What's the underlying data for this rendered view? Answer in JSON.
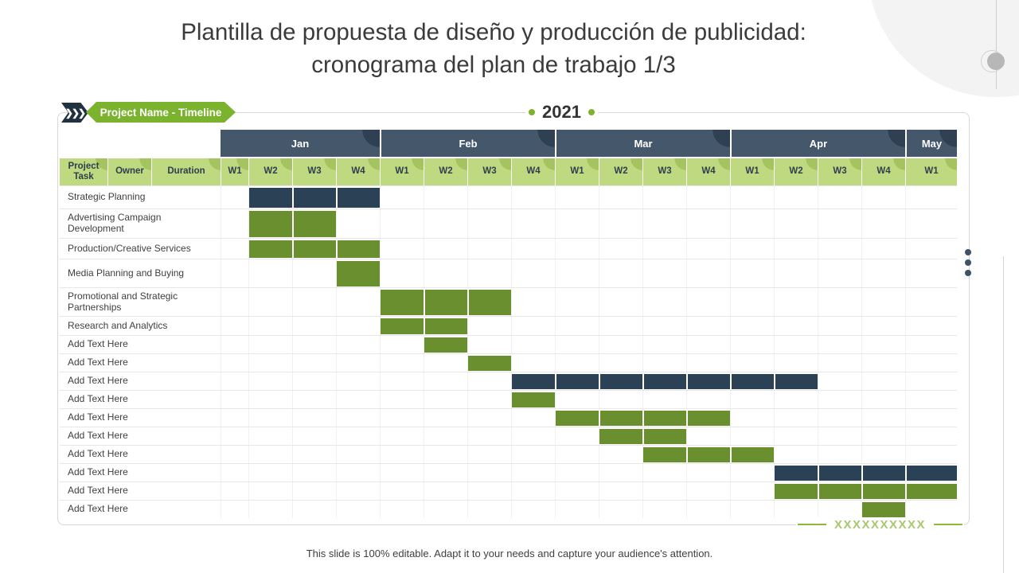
{
  "slide": {
    "title_line1": "Plantilla de propuesta de diseño y producción de publicidad:",
    "title_line2": "cronograma del plan de trabajo 1/3",
    "footer": "This slide is 100% editable. Adapt it to your needs and capture your audience's attention.",
    "signature_placeholder": "XXXXXXXXXX"
  },
  "banner": {
    "label": "Project Name - Timeline",
    "chevron_glyphs": "❯❯❯",
    "year": "2021"
  },
  "colors": {
    "bar_navy": "#2b4155",
    "bar_green": "#6a8f2e",
    "header_navy": "#45576b",
    "header_navy_dark": "#2e4052",
    "header_green": "#bed97f",
    "header_green_dark": "#a3c45f",
    "banner_green": "#7cb32e",
    "frame_line": "#d8d8d8"
  },
  "table": {
    "left_headers": [
      "Project Task",
      "Owner",
      "Duration"
    ],
    "months": [
      {
        "name": "Jan",
        "weeks": [
          "W1",
          "W2",
          "W3",
          "W4"
        ]
      },
      {
        "name": "Feb",
        "weeks": [
          "W1",
          "W2",
          "W3",
          "W4"
        ]
      },
      {
        "name": "Mar",
        "weeks": [
          "W1",
          "W2",
          "W3",
          "W4"
        ]
      },
      {
        "name": "Apr",
        "weeks": [
          "W1",
          "W2",
          "W3",
          "W4"
        ]
      },
      {
        "name": "May",
        "weeks": [
          "W1"
        ]
      }
    ]
  },
  "chart_data": {
    "type": "table",
    "title": "Project Name - Timeline",
    "year": "2021",
    "x_axis_weeks": [
      "Jan W1",
      "Jan W2",
      "Jan W3",
      "Jan W4",
      "Feb W1",
      "Feb W2",
      "Feb W3",
      "Feb W4",
      "Mar W1",
      "Mar W2",
      "Mar W3",
      "Mar W4",
      "Apr W1",
      "Apr W2",
      "Apr W3",
      "Apr W4",
      "May W1"
    ],
    "legend": "gantt bars; start/span are 1-based indexes into x_axis_weeks",
    "tasks": [
      {
        "name": "Strategic Planning",
        "start": 2,
        "span": 3,
        "color": "navy",
        "start_week": "Jan W2",
        "end_week": "Jan W4"
      },
      {
        "name": "Advertising Campaign Development",
        "start": 2,
        "span": 2,
        "color": "green",
        "start_week": "Jan W2",
        "end_week": "Jan W3"
      },
      {
        "name": "Production/Creative Services",
        "start": 2,
        "span": 3,
        "color": "green",
        "start_week": "Jan W2",
        "end_week": "Jan W4"
      },
      {
        "name": "Media Planning and Buying",
        "start": 4,
        "span": 1,
        "color": "green",
        "start_week": "Jan W4",
        "end_week": "Jan W4"
      },
      {
        "name": "Promotional and Strategic Partnerships",
        "start": 5,
        "span": 3,
        "color": "green",
        "start_week": "Feb W1",
        "end_week": "Feb W3"
      },
      {
        "name": "Research and Analytics",
        "start": 5,
        "span": 2,
        "color": "green",
        "start_week": "Feb W1",
        "end_week": "Feb W2"
      },
      {
        "name": "Add Text Here",
        "start": 6,
        "span": 1,
        "color": "green",
        "start_week": "Feb W2",
        "end_week": "Feb W2"
      },
      {
        "name": "Add Text Here",
        "start": 7,
        "span": 1,
        "color": "green",
        "start_week": "Feb W3",
        "end_week": "Feb W3"
      },
      {
        "name": "Add Text Here",
        "start": 8,
        "span": 7,
        "color": "navy",
        "start_week": "Feb W4",
        "end_week": "Apr W2"
      },
      {
        "name": "Add Text Here",
        "start": 8,
        "span": 1,
        "color": "green",
        "start_week": "Feb W4",
        "end_week": "Feb W4"
      },
      {
        "name": "Add Text Here",
        "start": 9,
        "span": 4,
        "color": "green",
        "start_week": "Mar W1",
        "end_week": "Mar W4"
      },
      {
        "name": "Add Text Here",
        "start": 10,
        "span": 2,
        "color": "green",
        "start_week": "Mar W2",
        "end_week": "Mar W3"
      },
      {
        "name": "Add Text Here",
        "start": 11,
        "span": 3,
        "color": "green",
        "start_week": "Mar W3",
        "end_week": "Apr W1"
      },
      {
        "name": "Add Text Here",
        "start": 14,
        "span": 4,
        "color": "navy",
        "start_week": "Apr W2",
        "end_week": "May W1"
      },
      {
        "name": "Add Text Here",
        "start": 14,
        "span": 4,
        "color": "green",
        "start_week": "Apr W2",
        "end_week": "May W1"
      },
      {
        "name": "Add Text Here",
        "start": 16,
        "span": 1,
        "color": "green",
        "start_week": "Apr W4",
        "end_week": "Apr W4"
      }
    ]
  }
}
